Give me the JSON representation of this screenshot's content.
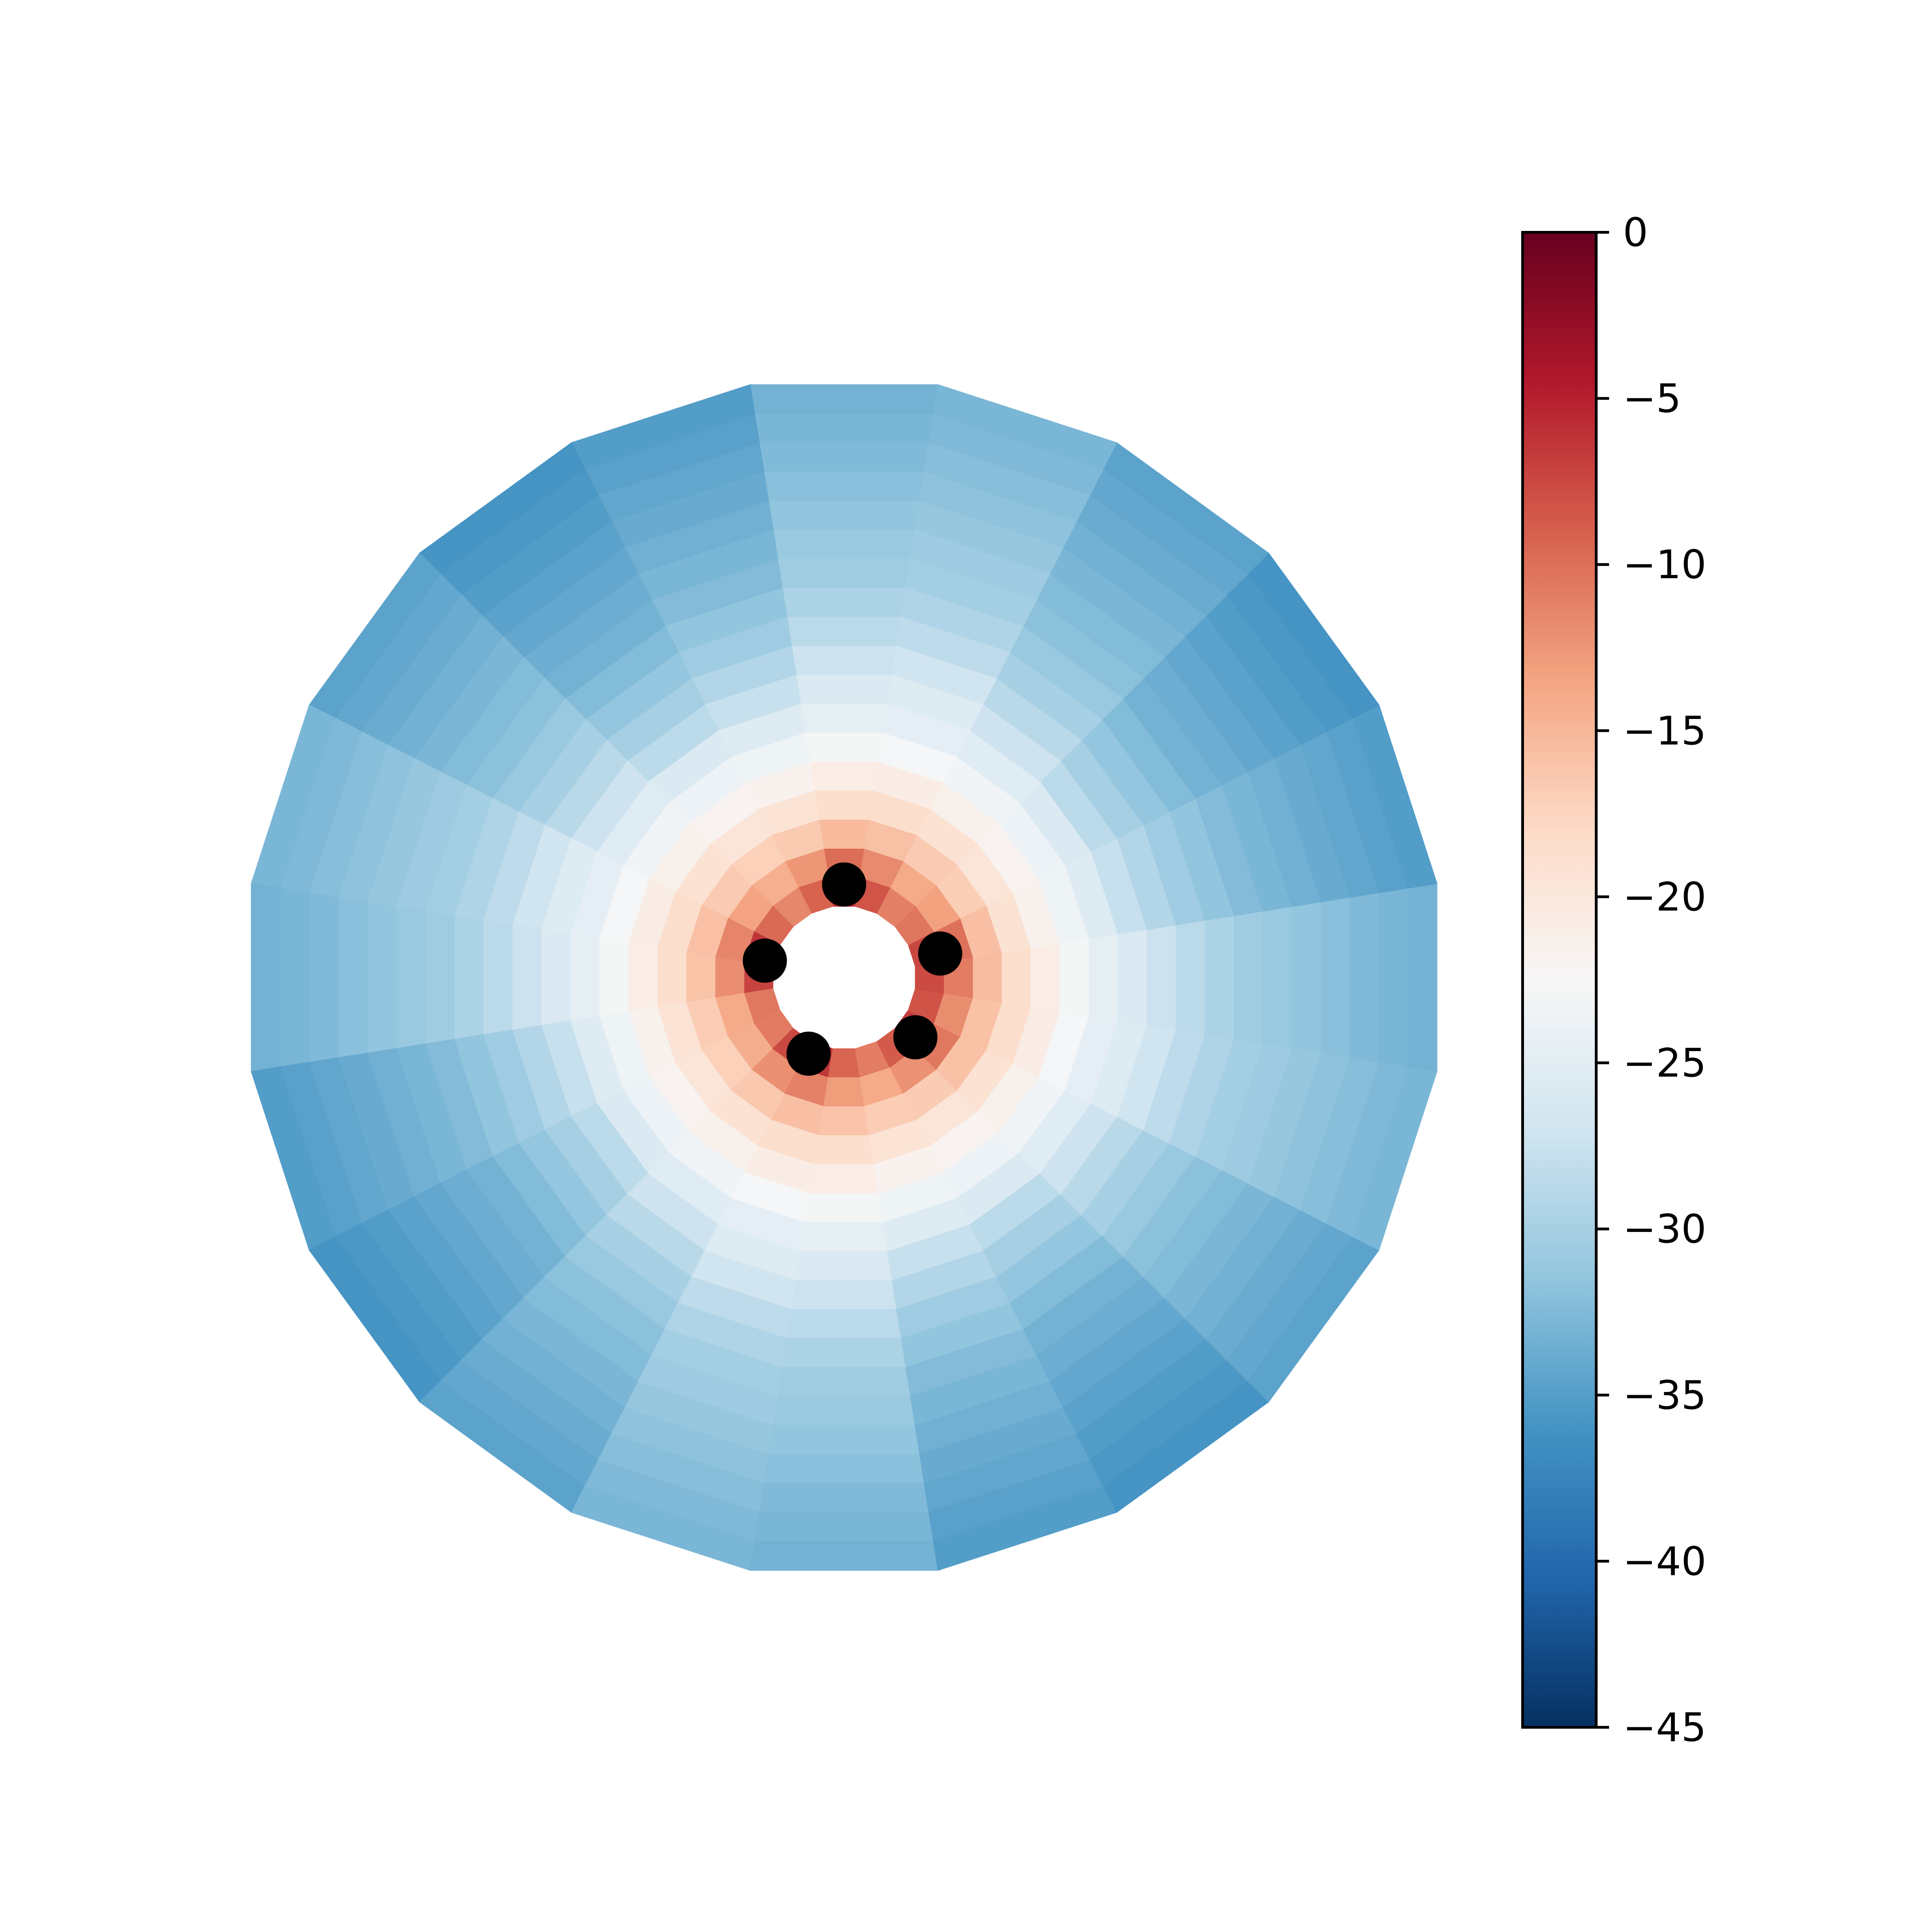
{
  "chart_data": {
    "type": "heatmap",
    "subtype": "polar-mesh",
    "title": "",
    "xlabel": "",
    "ylabel": "",
    "colormap": "RdBu_r",
    "color_range": [
      -45,
      0
    ],
    "colorbar": {
      "ticks": [
        0,
        -5,
        -10,
        -15,
        -20,
        -25,
        -30,
        -35,
        -40,
        -45
      ],
      "tick_labels": [
        "0",
        "−5",
        "−10",
        "−15",
        "−20",
        "−25",
        "−30",
        "−35",
        "−40",
        "−45"
      ],
      "placement": "right"
    },
    "grid": {
      "angular_sectors": 20,
      "radial_rings": 18,
      "r_min": 0.12,
      "r_max": 1.0
    },
    "field_model": "value(r) = base(r) + angular modulation near the centre; highest (about -9) next to the black markers, decreasing to about -36 at the outer edge",
    "radial_profile": {
      "r": [
        0.12,
        0.17,
        0.22,
        0.27,
        0.32,
        0.37,
        0.42,
        0.47,
        0.52,
        0.57,
        0.62,
        0.67,
        0.72,
        0.77,
        0.82,
        0.87,
        0.93,
        1.0
      ],
      "value": [
        -11,
        -13,
        -15.5,
        -18,
        -20.5,
        -22.5,
        -24.5,
        -26.5,
        -28,
        -29.5,
        -30.5,
        -31.5,
        -32,
        -32.5,
        -33,
        -33.5,
        -34,
        -34.5
      ]
    },
    "markers": {
      "count": 5,
      "color": "#000000",
      "positions": [
        {
          "angle_deg": 90,
          "r": 0.155
        },
        {
          "angle_deg": 14,
          "r": 0.165
        },
        {
          "angle_deg": -40,
          "r": 0.155
        },
        {
          "angle_deg": -115,
          "r": 0.14
        },
        {
          "angle_deg": 168,
          "r": 0.135
        }
      ]
    }
  }
}
